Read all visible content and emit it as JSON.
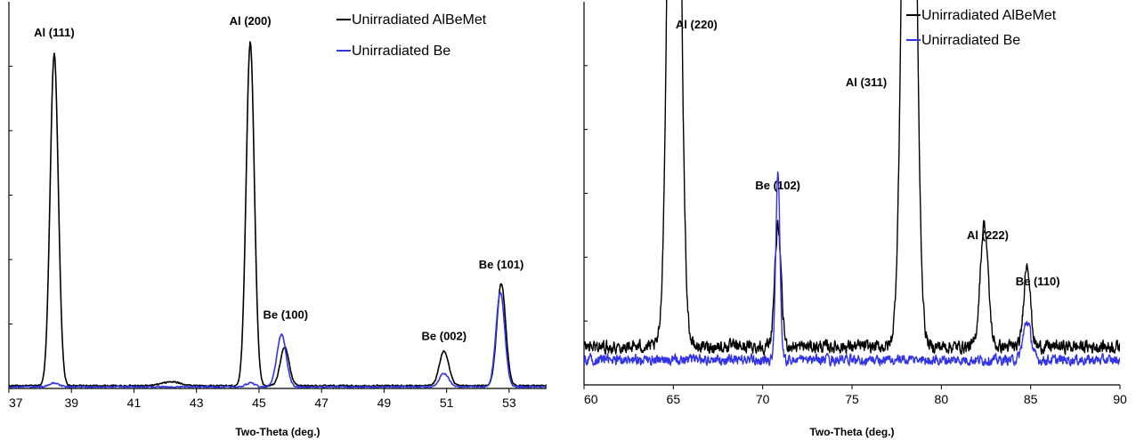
{
  "colors": {
    "series1": "#000000",
    "series2": "#3333e6"
  },
  "chart_data": [
    {
      "type": "line",
      "xlabel": "Two-Theta (deg.)",
      "ylabel": "",
      "xlim": [
        37,
        54.2
      ],
      "ylim": [
        0,
        1.0
      ],
      "xticks": [
        37,
        39,
        41,
        43,
        45,
        47,
        49,
        51,
        53
      ],
      "grid": false,
      "legend": "top-right",
      "series": [
        {
          "name": "Unirradiated AlBeMet",
          "peaks": [
            [
              38.45,
              0.86,
              0.13
            ],
            [
              44.72,
              0.89,
              0.13
            ],
            [
              45.82,
              0.1,
              0.14
            ],
            [
              50.92,
              0.09,
              0.15
            ],
            [
              52.75,
              0.265,
              0.14
            ],
            [
              42.2,
              0.01,
              0.3
            ]
          ],
          "baseline": 0.007
        },
        {
          "name": "Unirradiated Be",
          "peaks": [
            [
              38.45,
              0.01,
              0.15
            ],
            [
              44.72,
              0.01,
              0.15
            ],
            [
              45.72,
              0.135,
              0.15
            ],
            [
              50.92,
              0.035,
              0.15
            ],
            [
              52.72,
              0.245,
              0.14
            ]
          ],
          "baseline": 0.004
        }
      ],
      "annotations": [
        {
          "text": "Al (111)",
          "x": 38.45,
          "y": 0.91
        },
        {
          "text": "Al (200)",
          "x": 44.72,
          "y": 0.94
        },
        {
          "text": "Be (100)",
          "x": 45.85,
          "y": 0.18
        },
        {
          "text": "Be (002)",
          "x": 50.92,
          "y": 0.125
        },
        {
          "text": "Be (101)",
          "x": 52.75,
          "y": 0.31
        }
      ]
    },
    {
      "type": "line",
      "xlabel": "Two-Theta (deg.)",
      "ylabel": "",
      "xlim": [
        60,
        90
      ],
      "ylim": [
        0,
        1.0
      ],
      "xticks": [
        60,
        65,
        70,
        75,
        80,
        85,
        90
      ],
      "grid": false,
      "legend": "top-right",
      "series": [
        {
          "name": "Unirradiated AlBeMet",
          "peaks": [
            [
              65.05,
              2.5,
              0.3
            ],
            [
              70.85,
              0.31,
              0.18
            ],
            [
              78.2,
              2.5,
              0.32
            ],
            [
              82.4,
              0.32,
              0.22
            ],
            [
              84.8,
              0.22,
              0.18
            ]
          ],
          "baseline": 0.1,
          "noise": 0.025
        },
        {
          "name": "Unirradiated Be",
          "peaks": [
            [
              70.85,
              0.48,
              0.12
            ],
            [
              84.8,
              0.1,
              0.22
            ]
          ],
          "baseline": 0.065,
          "noise": 0.02
        }
      ],
      "annotations": [
        {
          "text": "Al (220)",
          "x": 66.3,
          "y": 0.93
        },
        {
          "text": "Al (311)",
          "x": 75.8,
          "y": 0.78
        },
        {
          "text": "Be (102)",
          "x": 70.85,
          "y": 0.51
        },
        {
          "text": "Al (222)",
          "x": 82.6,
          "y": 0.38
        },
        {
          "text": "Be (110)",
          "x": 85.4,
          "y": 0.26
        }
      ]
    }
  ]
}
